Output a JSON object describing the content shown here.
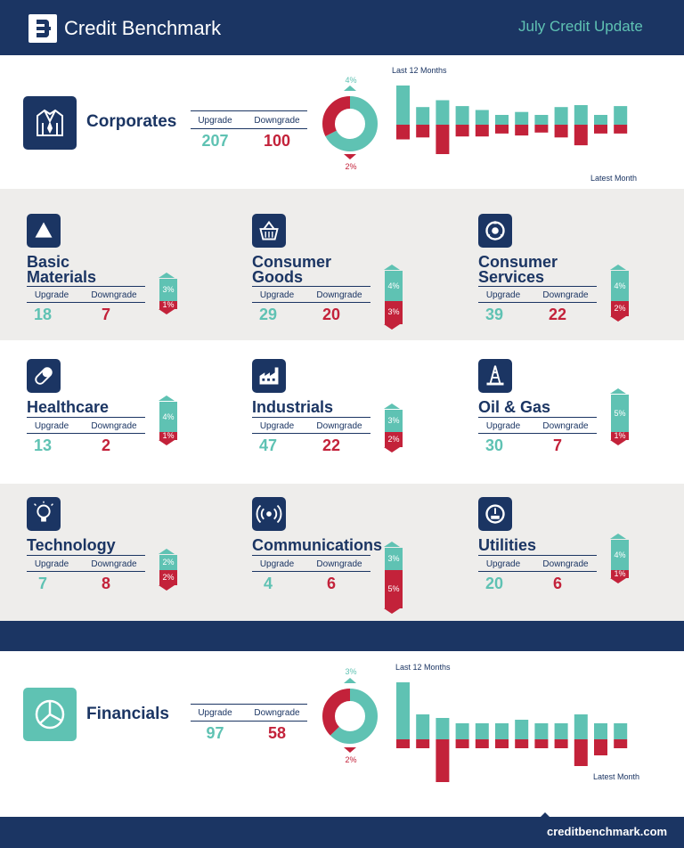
{
  "header": {
    "brand": "Credit Benchmark",
    "subtitle": "July Credit Update"
  },
  "colors": {
    "navy": "#1b3563",
    "teal": "#5fc2b3",
    "red": "#c3223a",
    "grey_band": "#eeedeb"
  },
  "corporates": {
    "title": "Corporates",
    "upgrade_label": "Upgrade",
    "downgrade_label": "Downgrade",
    "upgrade": 207,
    "downgrade": 100,
    "up_pct": "4%",
    "down_pct": "2%",
    "last12": "Last 12 Months",
    "latest": "Latest Month"
  },
  "categories": [
    {
      "title": "Basic\nMaterials",
      "icon": "triangle-icon",
      "upgrade": 18,
      "downgrade": 7,
      "up_pct": "3%",
      "down_pct": "1%",
      "up_val": 3,
      "down_val": 1
    },
    {
      "title": "Consumer\nGoods",
      "icon": "basket-icon",
      "upgrade": 29,
      "downgrade": 20,
      "up_pct": "4%",
      "down_pct": "3%",
      "up_val": 4,
      "down_val": 3
    },
    {
      "title": "Consumer\nServices",
      "icon": "service-icon",
      "upgrade": 39,
      "downgrade": 22,
      "up_pct": "4%",
      "down_pct": "2%",
      "up_val": 4,
      "down_val": 2
    },
    {
      "title": "Healthcare",
      "icon": "pill-icon",
      "upgrade": 13,
      "downgrade": 2,
      "up_pct": "4%",
      "down_pct": "1%",
      "up_val": 4,
      "down_val": 1
    },
    {
      "title": "Industrials",
      "icon": "factory-icon",
      "upgrade": 47,
      "downgrade": 22,
      "up_pct": "3%",
      "down_pct": "2%",
      "up_val": 3,
      "down_val": 2
    },
    {
      "title": "Oil & Gas",
      "icon": "oil-rig-icon",
      "upgrade": 30,
      "downgrade": 7,
      "up_pct": "5%",
      "down_pct": "1%",
      "up_val": 5,
      "down_val": 1
    },
    {
      "title": "Technology",
      "icon": "lightbulb-icon",
      "upgrade": 7,
      "downgrade": 8,
      "up_pct": "2%",
      "down_pct": "2%",
      "up_val": 2,
      "down_val": 2
    },
    {
      "title": "Communications",
      "icon": "signal-icon",
      "upgrade": 4,
      "downgrade": 6,
      "up_pct": "3%",
      "down_pct": "5%",
      "up_val": 3,
      "down_val": 5
    },
    {
      "title": "Utilities",
      "icon": "gauge-icon",
      "upgrade": 20,
      "downgrade": 6,
      "up_pct": "4%",
      "down_pct": "1%",
      "up_val": 4,
      "down_val": 1
    }
  ],
  "financials": {
    "title": "Financials",
    "upgrade_label": "Upgrade",
    "downgrade_label": "Downgrade",
    "upgrade": 97,
    "downgrade": 58,
    "up_pct": "3%",
    "down_pct": "2%",
    "last12": "Last 12 Months",
    "latest": "Latest Month"
  },
  "footer": {
    "url": "creditbenchmark.com"
  },
  "chart_data": [
    {
      "type": "pie",
      "title": "",
      "series": [
        {
          "values": [
            207,
            100
          ]
        }
      ],
      "categories": [
        "Upgrade",
        "Downgrade"
      ]
    },
    {
      "type": "bar",
      "title": "Last 12 Months",
      "categories": [
        "1",
        "2",
        "3",
        "4",
        "5",
        "6",
        "7",
        "8",
        "9",
        "10",
        "11",
        "12"
      ],
      "series": [
        {
          "values": [
            2.0,
            0.9,
            1.25,
            0.95,
            0.75,
            0.5,
            0.65,
            0.5,
            0.9,
            1.0,
            0.5,
            0.95
          ]
        },
        {
          "values": [
            -0.75,
            -0.65,
            -1.5,
            -0.6,
            -0.6,
            -0.45,
            -0.55,
            -0.4,
            -0.65,
            -1.05,
            -0.45,
            -0.45
          ]
        }
      ]
    },
    {
      "type": "pie",
      "title": "",
      "series": [
        {
          "values": [
            97,
            58
          ]
        }
      ],
      "categories": [
        "Upgrade",
        "Downgrade"
      ]
    },
    {
      "type": "bar",
      "title": "Last 12 Months",
      "categories": [
        "1",
        "2",
        "3",
        "4",
        "5",
        "6",
        "7",
        "8",
        "9",
        "10",
        "11",
        "12"
      ],
      "series": [
        {
          "values": [
            3.2,
            1.4,
            1.2,
            0.9,
            0.9,
            0.9,
            1.1,
            0.9,
            0.9,
            1.4,
            0.9,
            0.9
          ]
        },
        {
          "values": [
            -0.5,
            -0.5,
            -2.4,
            -0.5,
            -0.5,
            -0.5,
            -0.5,
            -0.5,
            -0.5,
            -1.5,
            -0.9,
            -0.5
          ]
        }
      ]
    }
  ]
}
